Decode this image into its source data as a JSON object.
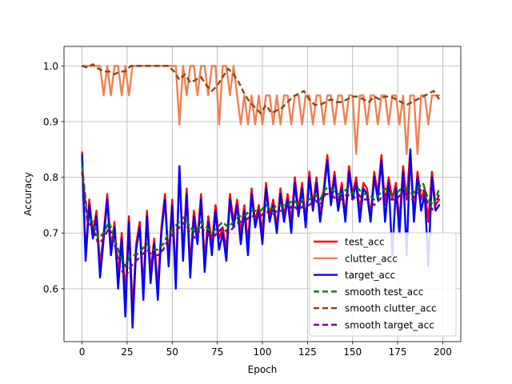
{
  "chart_data": {
    "type": "line",
    "title": "",
    "xlabel": "Epoch",
    "ylabel": "Accuracy",
    "xlim": [
      -10,
      210
    ],
    "ylim": [
      0.505,
      1.035
    ],
    "xticks": [
      0,
      25,
      50,
      75,
      100,
      125,
      150,
      175,
      200
    ],
    "yticks": [
      0.6,
      0.7,
      0.8,
      0.9,
      1.0
    ],
    "xtick_labels": [
      "0",
      "25",
      "50",
      "75",
      "100",
      "125",
      "150",
      "175",
      "200"
    ],
    "ytick_labels": [
      "0.6",
      "0.7",
      "0.8",
      "0.9",
      "1.0"
    ],
    "grid": true,
    "legend_position": "lower-right",
    "series": [
      {
        "name": "test_acc",
        "color": "#ff0000",
        "style": "solid",
        "x": [
          0,
          2,
          4,
          6,
          8,
          10,
          12,
          14,
          16,
          18,
          20,
          22,
          24,
          26,
          28,
          30,
          32,
          34,
          36,
          38,
          40,
          42,
          44,
          46,
          48,
          50,
          52,
          54,
          56,
          58,
          60,
          62,
          64,
          66,
          68,
          70,
          72,
          74,
          76,
          78,
          80,
          82,
          84,
          86,
          88,
          90,
          92,
          94,
          96,
          98,
          100,
          102,
          104,
          106,
          108,
          110,
          112,
          114,
          116,
          118,
          120,
          122,
          124,
          126,
          128,
          130,
          132,
          134,
          136,
          138,
          140,
          142,
          144,
          146,
          148,
          150,
          152,
          154,
          156,
          158,
          160,
          162,
          164,
          166,
          168,
          170,
          172,
          174,
          176,
          178,
          180,
          182,
          184,
          186,
          188,
          190,
          192,
          194,
          196,
          198
        ],
        "values": [
          0.845,
          0.66,
          0.76,
          0.7,
          0.74,
          0.64,
          0.7,
          0.77,
          0.67,
          0.72,
          0.62,
          0.7,
          0.58,
          0.73,
          0.56,
          0.68,
          0.72,
          0.6,
          0.74,
          0.63,
          0.69,
          0.6,
          0.71,
          0.77,
          0.65,
          0.76,
          0.62,
          0.82,
          0.66,
          0.78,
          0.64,
          0.74,
          0.69,
          0.77,
          0.65,
          0.73,
          0.68,
          0.75,
          0.69,
          0.71,
          0.67,
          0.77,
          0.72,
          0.76,
          0.7,
          0.75,
          0.68,
          0.78,
          0.72,
          0.75,
          0.7,
          0.79,
          0.73,
          0.76,
          0.71,
          0.78,
          0.73,
          0.77,
          0.72,
          0.8,
          0.74,
          0.79,
          0.72,
          0.81,
          0.75,
          0.8,
          0.73,
          0.78,
          0.84,
          0.76,
          0.81,
          0.75,
          0.79,
          0.73,
          0.82,
          0.77,
          0.8,
          0.74,
          0.79,
          0.78,
          0.73,
          0.81,
          0.77,
          0.84,
          0.75,
          0.8,
          0.76,
          0.79,
          0.72,
          0.82,
          0.76,
          0.85,
          0.73,
          0.81,
          0.76,
          0.78,
          0.72,
          0.81,
          0.75,
          0.76
        ]
      },
      {
        "name": "clutter_acc",
        "color": "#f08050",
        "style": "solid",
        "x": [
          0,
          2,
          4,
          6,
          8,
          10,
          12,
          14,
          16,
          18,
          20,
          22,
          24,
          26,
          28,
          30,
          32,
          34,
          36,
          38,
          40,
          42,
          44,
          46,
          48,
          50,
          52,
          54,
          56,
          58,
          60,
          62,
          64,
          66,
          68,
          70,
          72,
          74,
          76,
          78,
          80,
          82,
          84,
          86,
          88,
          90,
          92,
          94,
          96,
          98,
          100,
          102,
          104,
          106,
          108,
          110,
          112,
          114,
          116,
          118,
          120,
          122,
          124,
          126,
          128,
          130,
          132,
          134,
          136,
          138,
          140,
          142,
          144,
          146,
          148,
          150,
          152,
          154,
          156,
          158,
          160,
          162,
          164,
          166,
          168,
          170,
          172,
          174,
          176,
          178,
          180,
          182,
          184,
          186,
          188,
          190,
          192,
          194,
          196,
          198
        ],
        "values": [
          1.0,
          1.0,
          1.0,
          1.0,
          1.0,
          1.0,
          0.947,
          1.0,
          0.947,
          1.0,
          1.0,
          0.947,
          1.0,
          0.947,
          1.0,
          1.0,
          1.0,
          1.0,
          1.0,
          1.0,
          1.0,
          1.0,
          1.0,
          1.0,
          1.0,
          1.0,
          1.0,
          0.895,
          1.0,
          0.947,
          1.0,
          1.0,
          0.947,
          1.0,
          1.0,
          0.947,
          1.0,
          1.0,
          0.895,
          1.0,
          1.0,
          0.947,
          1.0,
          0.947,
          0.895,
          0.947,
          0.895,
          0.947,
          0.895,
          0.947,
          0.895,
          0.947,
          0.947,
          0.895,
          0.947,
          0.895,
          0.947,
          0.947,
          0.895,
          0.947,
          0.947,
          0.895,
          0.947,
          0.947,
          0.895,
          0.947,
          0.947,
          0.895,
          0.947,
          0.947,
          0.895,
          0.947,
          0.947,
          0.895,
          0.947,
          0.947,
          0.842,
          0.947,
          0.947,
          0.895,
          0.947,
          0.947,
          0.895,
          0.947,
          0.947,
          0.895,
          0.947,
          0.947,
          0.895,
          0.947,
          0.842,
          0.947,
          0.947,
          0.842,
          0.947,
          0.947,
          0.895,
          0.947,
          0.947,
          0.947
        ]
      },
      {
        "name": "target_acc",
        "color": "#0000ff",
        "style": "solid",
        "x": [
          0,
          2,
          4,
          6,
          8,
          10,
          12,
          14,
          16,
          18,
          20,
          22,
          24,
          26,
          28,
          30,
          32,
          34,
          36,
          38,
          40,
          42,
          44,
          46,
          48,
          50,
          52,
          54,
          56,
          58,
          60,
          62,
          64,
          66,
          68,
          70,
          72,
          74,
          76,
          78,
          80,
          82,
          84,
          86,
          88,
          90,
          92,
          94,
          96,
          98,
          100,
          102,
          104,
          106,
          108,
          110,
          112,
          114,
          116,
          118,
          120,
          122,
          124,
          126,
          128,
          130,
          132,
          134,
          136,
          138,
          140,
          142,
          144,
          146,
          148,
          150,
          152,
          154,
          156,
          158,
          160,
          162,
          164,
          166,
          168,
          170,
          172,
          174,
          176,
          178,
          180,
          182,
          184,
          186,
          188,
          190,
          192,
          194,
          196,
          198
        ],
        "values": [
          0.84,
          0.65,
          0.75,
          0.69,
          0.73,
          0.62,
          0.69,
          0.76,
          0.66,
          0.71,
          0.6,
          0.69,
          0.55,
          0.72,
          0.53,
          0.67,
          0.71,
          0.58,
          0.73,
          0.61,
          0.68,
          0.58,
          0.7,
          0.76,
          0.64,
          0.75,
          0.6,
          0.82,
          0.65,
          0.77,
          0.62,
          0.73,
          0.68,
          0.76,
          0.63,
          0.72,
          0.66,
          0.74,
          0.67,
          0.7,
          0.65,
          0.76,
          0.71,
          0.75,
          0.68,
          0.74,
          0.66,
          0.77,
          0.71,
          0.74,
          0.68,
          0.78,
          0.72,
          0.75,
          0.7,
          0.77,
          0.72,
          0.76,
          0.7,
          0.79,
          0.73,
          0.78,
          0.71,
          0.8,
          0.74,
          0.79,
          0.72,
          0.77,
          0.83,
          0.75,
          0.8,
          0.74,
          0.78,
          0.72,
          0.81,
          0.76,
          0.79,
          0.72,
          0.78,
          0.77,
          0.72,
          0.8,
          0.76,
          0.83,
          0.72,
          0.79,
          0.66,
          0.78,
          0.7,
          0.81,
          0.66,
          0.85,
          0.72,
          0.8,
          0.74,
          0.77,
          0.64,
          0.8,
          0.74,
          0.75
        ]
      },
      {
        "name": "smooth test_acc",
        "color": "#008000",
        "style": "dashed",
        "x": [
          0,
          3,
          6,
          9,
          12,
          15,
          18,
          21,
          24,
          27,
          30,
          33,
          36,
          39,
          42,
          45,
          48,
          51,
          54,
          57,
          60,
          63,
          66,
          69,
          72,
          75,
          78,
          81,
          84,
          87,
          90,
          93,
          96,
          99,
          102,
          105,
          108,
          111,
          114,
          117,
          120,
          123,
          126,
          129,
          132,
          135,
          138,
          141,
          144,
          147,
          150,
          153,
          156,
          159,
          162,
          165,
          168,
          171,
          174,
          177,
          180,
          183,
          186,
          189,
          192,
          195,
          198
        ],
        "values": [
          0.82,
          0.73,
          0.72,
          0.69,
          0.7,
          0.72,
          0.69,
          0.66,
          0.64,
          0.66,
          0.66,
          0.67,
          0.68,
          0.67,
          0.67,
          0.68,
          0.7,
          0.71,
          0.72,
          0.73,
          0.71,
          0.7,
          0.72,
          0.71,
          0.7,
          0.71,
          0.72,
          0.71,
          0.72,
          0.73,
          0.73,
          0.74,
          0.74,
          0.74,
          0.75,
          0.74,
          0.75,
          0.75,
          0.75,
          0.76,
          0.75,
          0.76,
          0.76,
          0.77,
          0.76,
          0.78,
          0.78,
          0.77,
          0.77,
          0.78,
          0.77,
          0.78,
          0.77,
          0.77,
          0.76,
          0.77,
          0.78,
          0.77,
          0.77,
          0.78,
          0.78,
          0.77,
          0.78,
          0.79,
          0.76,
          0.75,
          0.78
        ]
      },
      {
        "name": "smooth clutter_acc",
        "color": "#8b4513",
        "style": "dashed",
        "x": [
          0,
          3,
          6,
          9,
          12,
          15,
          18,
          21,
          24,
          27,
          30,
          33,
          36,
          39,
          42,
          45,
          48,
          51,
          54,
          57,
          60,
          63,
          66,
          69,
          72,
          75,
          78,
          81,
          84,
          87,
          90,
          93,
          96,
          99,
          102,
          105,
          108,
          111,
          114,
          117,
          120,
          123,
          126,
          129,
          132,
          135,
          138,
          141,
          144,
          147,
          150,
          153,
          156,
          159,
          162,
          165,
          168,
          171,
          174,
          177,
          180,
          183,
          186,
          189,
          192,
          195,
          198
        ],
        "values": [
          1.0,
          0.997,
          1.003,
          0.995,
          0.99,
          0.99,
          0.985,
          0.99,
          0.99,
          1.0,
          1.0,
          1.0,
          1.0,
          1.0,
          1.0,
          1.0,
          1.0,
          0.99,
          0.975,
          0.985,
          0.97,
          0.975,
          0.98,
          0.965,
          0.955,
          0.965,
          0.98,
          0.995,
          0.985,
          0.97,
          0.95,
          0.935,
          0.925,
          0.915,
          0.93,
          0.915,
          0.92,
          0.925,
          0.935,
          0.945,
          0.95,
          0.955,
          0.94,
          0.93,
          0.93,
          0.935,
          0.94,
          0.935,
          0.935,
          0.94,
          0.945,
          0.945,
          0.94,
          0.935,
          0.945,
          0.94,
          0.945,
          0.945,
          0.94,
          0.935,
          0.93,
          0.935,
          0.94,
          0.945,
          0.95,
          0.955,
          0.94
        ]
      },
      {
        "name": "smooth target_acc",
        "color": "#800080",
        "style": "dashed",
        "x": [
          0,
          3,
          6,
          9,
          12,
          15,
          18,
          21,
          24,
          27,
          30,
          33,
          36,
          39,
          42,
          45,
          48,
          51,
          54,
          57,
          60,
          63,
          66,
          69,
          72,
          75,
          78,
          81,
          84,
          87,
          90,
          93,
          96,
          99,
          102,
          105,
          108,
          111,
          114,
          117,
          120,
          123,
          126,
          129,
          132,
          135,
          138,
          141,
          144,
          147,
          150,
          153,
          156,
          159,
          162,
          165,
          168,
          171,
          174,
          177,
          180,
          183,
          186,
          189,
          192,
          195,
          198
        ],
        "values": [
          0.81,
          0.72,
          0.71,
          0.68,
          0.69,
          0.71,
          0.68,
          0.64,
          0.62,
          0.64,
          0.65,
          0.66,
          0.67,
          0.66,
          0.66,
          0.67,
          0.69,
          0.7,
          0.71,
          0.72,
          0.7,
          0.69,
          0.71,
          0.7,
          0.69,
          0.7,
          0.71,
          0.7,
          0.71,
          0.72,
          0.72,
          0.73,
          0.73,
          0.73,
          0.74,
          0.73,
          0.74,
          0.74,
          0.74,
          0.75,
          0.74,
          0.75,
          0.75,
          0.76,
          0.75,
          0.77,
          0.77,
          0.76,
          0.76,
          0.77,
          0.76,
          0.77,
          0.76,
          0.76,
          0.75,
          0.76,
          0.77,
          0.76,
          0.76,
          0.77,
          0.77,
          0.76,
          0.77,
          0.78,
          0.75,
          0.74,
          0.77
        ]
      }
    ]
  }
}
